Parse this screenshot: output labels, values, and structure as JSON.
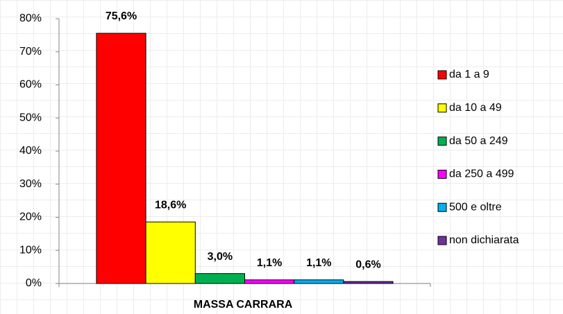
{
  "chart_data": {
    "type": "bar",
    "categories": [
      "MASSA CARRARA"
    ],
    "series": [
      {
        "name": "da 1 a 9",
        "color": "#ff0000",
        "values": [
          75.6
        ],
        "value_labels": [
          "75,6%"
        ]
      },
      {
        "name": "da 10 a 49",
        "color": "#ffff00",
        "values": [
          18.6
        ],
        "value_labels": [
          "18,6%"
        ]
      },
      {
        "name": "da 50 a 249",
        "color": "#00b050",
        "values": [
          3.0
        ],
        "value_labels": [
          "3,0%"
        ]
      },
      {
        "name": "da 250 a 499",
        "color": "#ff00ff",
        "values": [
          1.1
        ],
        "value_labels": [
          "1,1%"
        ]
      },
      {
        "name": "500 e oltre",
        "color": "#00b0f0",
        "values": [
          1.1
        ],
        "value_labels": [
          "1,1%"
        ]
      },
      {
        "name": "non dichiarata",
        "color": "#7030a0",
        "values": [
          0.6
        ],
        "value_labels": [
          "0,6%"
        ]
      }
    ],
    "ylim": [
      0,
      80
    ],
    "yticks": [
      {
        "value": 0,
        "label": "0%"
      },
      {
        "value": 10,
        "label": "10%"
      },
      {
        "value": 20,
        "label": "20%"
      },
      {
        "value": 30,
        "label": "30%"
      },
      {
        "value": 40,
        "label": "40%"
      },
      {
        "value": 50,
        "label": "50%"
      },
      {
        "value": 60,
        "label": "60%"
      },
      {
        "value": 70,
        "label": "70%"
      },
      {
        "value": 80,
        "label": "80%"
      }
    ],
    "legend": "right"
  }
}
